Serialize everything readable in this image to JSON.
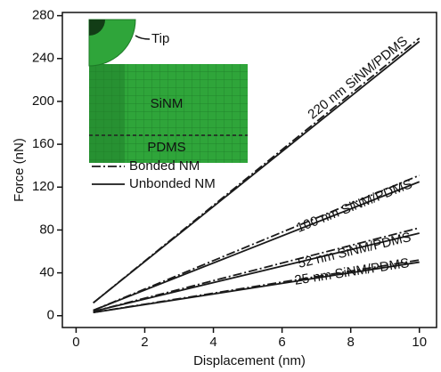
{
  "chart_data": {
    "type": "line",
    "x_label": "Displacement (nm)",
    "y_label": "Force (nN)",
    "xlim": [
      -0.4,
      10.5
    ],
    "ylim": [
      -11,
      283
    ],
    "xticks": [
      0,
      2,
      4,
      6,
      8,
      10
    ],
    "yticks": [
      0,
      40,
      80,
      120,
      160,
      200,
      240,
      280
    ],
    "x": [
      0.5,
      10
    ],
    "legend": [
      {
        "name": "Bonded NM",
        "dash": "dash-dot"
      },
      {
        "name": "Unbonded NM",
        "dash": "solid"
      }
    ],
    "series": [
      {
        "name": "220 nm SiNM/PDMS",
        "bonded": [
          12,
          259
        ],
        "unbonded": [
          12,
          256
        ]
      },
      {
        "name": "100 nm SiNM/PDMS",
        "bonded": [
          5,
          131
        ],
        "unbonded": [
          5,
          125
        ]
      },
      {
        "name": "52 nm SiNM/PDMS",
        "bonded": [
          4,
          82
        ],
        "unbonded": [
          4,
          77
        ]
      },
      {
        "name": "25 nm SiNM/PDMS",
        "bonded": [
          3,
          52
        ],
        "unbonded": [
          3,
          50
        ]
      }
    ],
    "color": "#1a1a1a",
    "inset": {
      "tip": "Tip",
      "film": "SiNM",
      "substrate": "PDMS"
    }
  }
}
